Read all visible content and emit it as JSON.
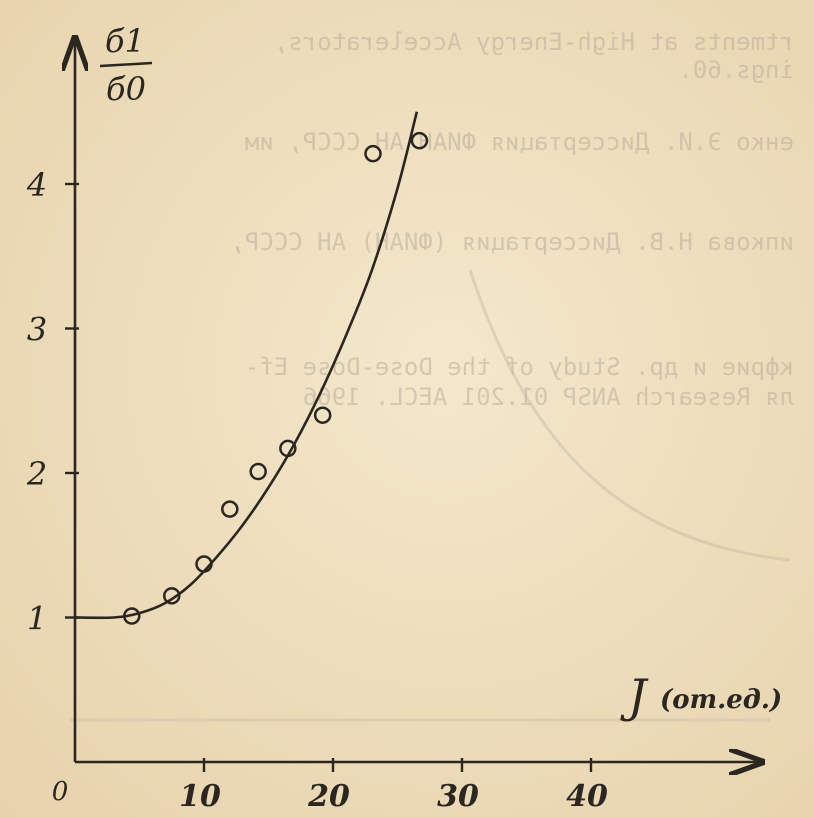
{
  "page": {
    "paper_color": "#f1e2c4",
    "ink_color": "#2b2620",
    "bleed_color": "#b7a99a"
  },
  "bleed_text": [
    "rtments at High-Energy Accelerators,",
    "ings.60.",
    "енко Э.И. Диссертация ФИАН АН СССР, им",
    "",
    "ипкова Н.В. Диссертация (ФИАН) АН СССР,",
    "",
    "кфрие и др.   Study of the Dose-Dose Ef-",
    "ля Research ANSP 01.201 AECL.  1966"
  ],
  "chart_data": {
    "type": "scatter",
    "ylabel_numerator": "б1",
    "ylabel_denominator": "б0",
    "xlabel_main": "J",
    "xlabel_unit": "(от.ед.)",
    "origin_label": "0",
    "xlim": [
      0,
      53
    ],
    "ylim": [
      0,
      5
    ],
    "x_ticks": [
      {
        "value": 10,
        "label": "10"
      },
      {
        "value": 20,
        "label": "20"
      },
      {
        "value": 30,
        "label": "30"
      },
      {
        "value": 40,
        "label": "40"
      }
    ],
    "y_ticks": [
      {
        "value": 1,
        "label": "1"
      },
      {
        "value": 2,
        "label": "2"
      },
      {
        "value": 3,
        "label": "3"
      },
      {
        "value": 4,
        "label": "4"
      }
    ],
    "points": [
      {
        "x": 4.4,
        "y": 1.01
      },
      {
        "x": 7.5,
        "y": 1.15
      },
      {
        "x": 10,
        "y": 1.37
      },
      {
        "x": 12,
        "y": 1.75
      },
      {
        "x": 14.2,
        "y": 2.01
      },
      {
        "x": 16.5,
        "y": 2.17
      },
      {
        "x": 19.2,
        "y": 2.4
      },
      {
        "x": 23.1,
        "y": 4.21
      },
      {
        "x": 26.7,
        "y": 4.3
      }
    ],
    "fit_curve": [
      {
        "x": 0,
        "y": 1.0
      },
      {
        "x": 3,
        "y": 1.0
      },
      {
        "x": 5,
        "y": 1.03
      },
      {
        "x": 7,
        "y": 1.1
      },
      {
        "x": 9,
        "y": 1.23
      },
      {
        "x": 11,
        "y": 1.42
      },
      {
        "x": 13,
        "y": 1.64
      },
      {
        "x": 15,
        "y": 1.9
      },
      {
        "x": 17,
        "y": 2.2
      },
      {
        "x": 19,
        "y": 2.55
      },
      {
        "x": 21,
        "y": 2.95
      },
      {
        "x": 23,
        "y": 3.4
      },
      {
        "x": 25,
        "y": 3.97
      },
      {
        "x": 26.5,
        "y": 4.5
      }
    ]
  }
}
